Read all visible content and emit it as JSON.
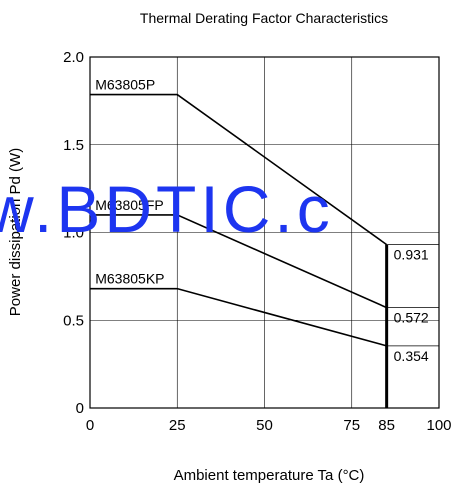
{
  "chart_data": {
    "type": "line",
    "title": "Thermal Derating Factor Characteristics",
    "xlabel": "Ambient temperature  Ta (°C)",
    "ylabel": "Power dissipation  Pd (W)",
    "xlim": [
      0,
      100
    ],
    "ylim": [
      0,
      2.0
    ],
    "x_ticks": [
      {
        "value": 0,
        "label": "0"
      },
      {
        "value": 25,
        "label": "25"
      },
      {
        "value": 50,
        "label": "50"
      },
      {
        "value": 75,
        "label": "75"
      },
      {
        "value": 85,
        "label": "85"
      },
      {
        "value": 100,
        "label": "100"
      }
    ],
    "y_ticks": [
      {
        "value": 0,
        "label": "0"
      },
      {
        "value": 0.5,
        "label": "0.5"
      },
      {
        "value": 1.0,
        "label": "1.0"
      },
      {
        "value": 1.5,
        "label": "1.5"
      },
      {
        "value": 2.0,
        "label": "2.0"
      }
    ],
    "grid_x": [
      25,
      50,
      75,
      100
    ],
    "grid_y": [
      0.5,
      1.0,
      1.5,
      2.0
    ],
    "limit_x": 85,
    "series": [
      {
        "name": "M63805P",
        "x": [
          0,
          25,
          85
        ],
        "y": [
          1.786,
          1.786,
          0.931
        ],
        "end_label": "0.931"
      },
      {
        "name": "M63805FP",
        "x": [
          0,
          25,
          85
        ],
        "y": [
          1.1,
          1.1,
          0.572
        ],
        "end_label": "0.572"
      },
      {
        "name": "M63805KP",
        "x": [
          0,
          25,
          85
        ],
        "y": [
          0.68,
          0.68,
          0.354
        ],
        "end_label": "0.354"
      }
    ],
    "grid": true
  },
  "watermark": "w.BDTIC.c"
}
